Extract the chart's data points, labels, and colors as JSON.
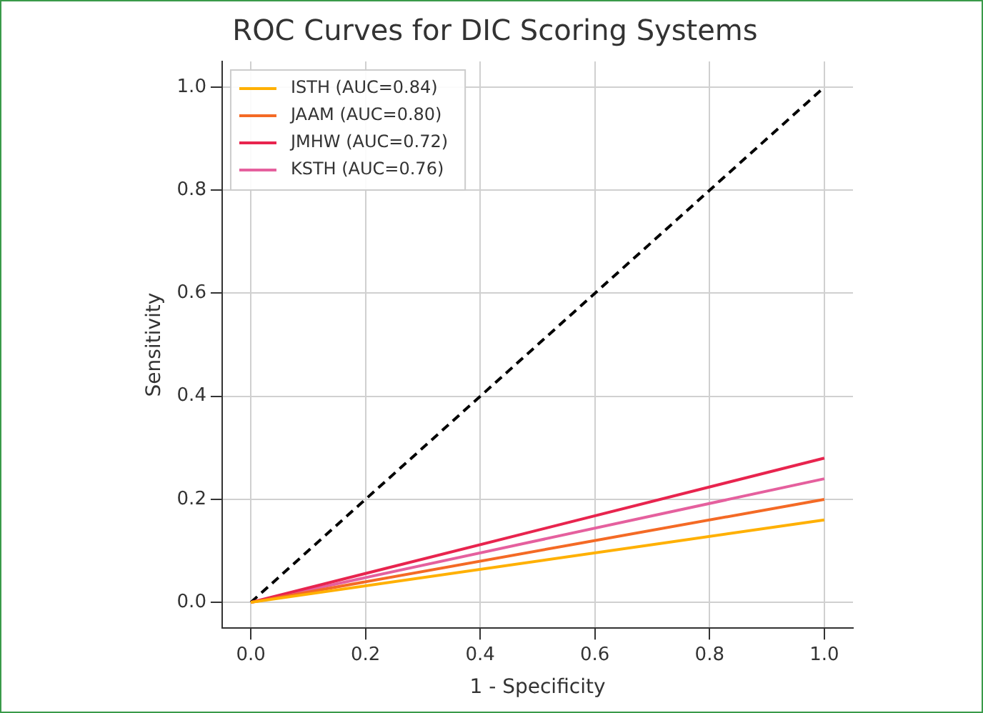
{
  "chart_data": {
    "type": "line",
    "title": "ROC Curves for DIC Scoring Systems",
    "xlabel": "1 - Specificity",
    "ylabel": "Sensitivity",
    "x": [
      0,
      1
    ],
    "series": [
      {
        "name": "ISTH (AUC=0.84)",
        "color": "#ffb000",
        "values": [
          0,
          0.16
        ]
      },
      {
        "name": "JAAM (AUC=0.80)",
        "color": "#f46a25",
        "values": [
          0,
          0.2
        ]
      },
      {
        "name": "JMHW (AUC=0.72)",
        "color": "#e8244e",
        "values": [
          0,
          0.28
        ]
      },
      {
        "name": "KSTH (AUC=0.76)",
        "color": "#e5609e",
        "values": [
          0,
          0.24
        ]
      },
      {
        "color": "#000000",
        "values": [
          0,
          1
        ],
        "line_style": "dashed"
      }
    ],
    "xlim": [
      -0.05,
      1.05
    ],
    "ylim": [
      -0.05,
      1.05
    ],
    "xticks": [
      {
        "value": 0,
        "label": "0.0"
      },
      0.2,
      0.4,
      0.6,
      0.8,
      {
        "value": 1,
        "label": "1.0"
      }
    ],
    "yticks": [
      {
        "value": 0,
        "label": "0.0"
      },
      0.2,
      0.4,
      0.6,
      0.8,
      {
        "value": 1,
        "label": "1.0"
      }
    ],
    "grid": true,
    "legend": "top left",
    "marker": "none",
    "line_style": "solid"
  }
}
